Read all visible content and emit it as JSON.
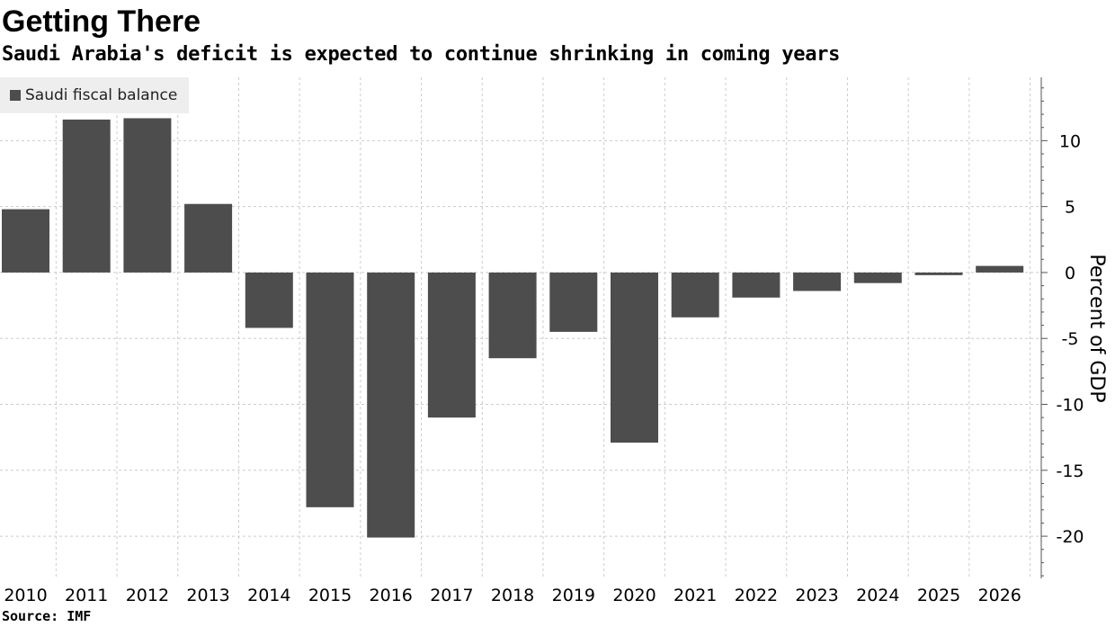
{
  "header": {
    "title": "Getting There",
    "subtitle": "Saudi Arabia's deficit is expected to continue shrinking in coming years"
  },
  "footer": {
    "source": "Source: IMF"
  },
  "colors": {
    "bar": "#4d4d4d",
    "grid": "#cccccc",
    "axis": "#555555",
    "legend_bg": "#eeeeee"
  },
  "chart_data": {
    "type": "bar",
    "title": "Getting There",
    "subtitle": "Saudi Arabia's deficit is expected to continue shrinking in coming years",
    "categories": [
      "2010",
      "2011",
      "2012",
      "2013",
      "2014",
      "2015",
      "2016",
      "2017",
      "2018",
      "2019",
      "2020",
      "2021",
      "2022",
      "2023",
      "2024",
      "2025",
      "2026"
    ],
    "series": [
      {
        "name": "Saudi fiscal balance",
        "values": [
          4.8,
          11.6,
          11.7,
          5.2,
          -4.2,
          -17.8,
          -20.1,
          -11.0,
          -6.5,
          -4.5,
          -12.9,
          -3.4,
          -1.9,
          -1.4,
          -0.8,
          -0.2,
          0.5
        ]
      }
    ],
    "xlabel": "",
    "ylabel": "Percent of GDP",
    "ylim": [
      -23.2,
      14.8
    ],
    "yticks": [
      10,
      5,
      0,
      -5,
      -10,
      -15,
      -20
    ],
    "ytick_labels": [
      "10",
      "5",
      "0",
      "-5",
      "-10",
      "-15",
      "-20"
    ],
    "grid": true,
    "legend_position": "top-left",
    "source": "Source: IMF"
  }
}
